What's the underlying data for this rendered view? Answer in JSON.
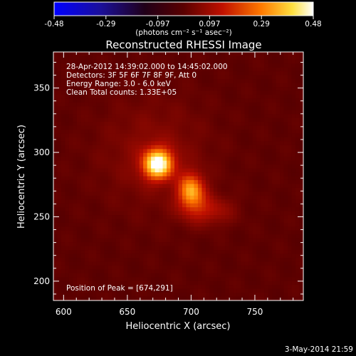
{
  "chart_data": {
    "type": "heatmap",
    "title": "Reconstructed RHESSI Image",
    "xlabel": "Heliocentric X (arcsec)",
    "ylabel": "Heliocentric Y (arcsec)",
    "xlim": [
      592,
      788
    ],
    "ylim": [
      185,
      378
    ],
    "x_ticks": [
      600,
      650,
      700,
      750
    ],
    "y_ticks": [
      200,
      250,
      300,
      350
    ],
    "colorbar": {
      "min": -0.48,
      "max": 0.48,
      "ticks": [
        "-0.48",
        "-0.29",
        "-0.097",
        "0.097",
        "0.29",
        "0.48"
      ],
      "units_label": "(photons cm⁻² s⁻¹ asec⁻²)",
      "colormap": "blue-black-red-yellow-white"
    },
    "annotations": [
      "28-Apr-2012 14:39:02.000 to 14:45:02.000",
      "Detectors: 3F 5F 6F 7F 8F 9F, Att 0",
      "Energy Range: 3.0 - 6.0 keV",
      "Clean    Total counts: 1.33E+05"
    ],
    "peak_label": "Position of Peak = [674,291]",
    "sources": [
      {
        "x": 674,
        "y": 291,
        "sx": 8,
        "sy": 8,
        "amp": 0.48
      },
      {
        "x": 700,
        "y": 270,
        "sx": 7,
        "sy": 9,
        "amp": 0.32
      },
      {
        "x": 712,
        "y": 255,
        "sx": 14,
        "sy": 8,
        "amp": 0.12
      },
      {
        "x": 670,
        "y": 300,
        "sx": 30,
        "sy": 30,
        "amp": 0.06
      }
    ]
  },
  "footer_date": "3-May-2014 21:59"
}
